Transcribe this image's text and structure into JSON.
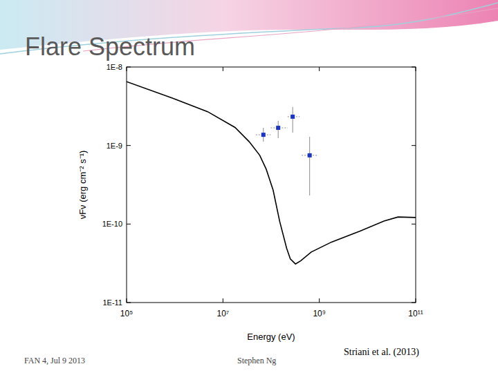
{
  "slide": {
    "title": "Flare Spectrum",
    "footer_left": "FAN 4, Jul 9 2013",
    "footer_center": "Stephen Ng",
    "credit": "Striani et al. (2013)"
  },
  "chart_data": {
    "type": "line",
    "log": true,
    "grid": false,
    "xlabel": "Energy (eV)",
    "ylabel": "νFν (erg cm⁻² s⁻¹)",
    "xlim": [
      100000,
      100000000000
    ],
    "xticks": [
      {
        "value": 100000,
        "label": "10⁵"
      },
      {
        "value": 10000000,
        "label": "10⁷"
      },
      {
        "value": 1000000000,
        "label": "10⁹"
      },
      {
        "value": 100000000000,
        "label": "10¹¹"
      }
    ],
    "ylim": [
      1e-11,
      1e-08
    ],
    "yticks": [
      {
        "value": 1e-11,
        "label": "1E-11"
      },
      {
        "value": 1e-10,
        "label": "1E-10"
      },
      {
        "value": 1e-09,
        "label": "1E-9"
      },
      {
        "value": 1e-08,
        "label": "1E-8"
      }
    ],
    "series": [
      {
        "type": "line",
        "color": "#000000",
        "line_style": "solid",
        "x": [
          100000,
          910000,
          4800000,
          17800000,
          35000000,
          58000000,
          79000000,
          110000000,
          150000000,
          210000000,
          250000000,
          320000000,
          410000000,
          680000000,
          1800000000,
          6900000000,
          22000000000,
          43000000000,
          100000000000
        ],
        "values": [
          6.5e-09,
          4e-09,
          2.7e-09,
          1.7e-09,
          1.12e-09,
          7.5e-10,
          5e-10,
          2.7e-10,
          1.09e-10,
          4.9e-11,
          3.6e-11,
          3.1e-11,
          3.4e-11,
          4.4e-11,
          5.9e-11,
          8.1e-11,
          1.09e-10,
          1.23e-10,
          1.21e-10
        ]
      },
      {
        "type": "scatter",
        "color": "#1c35c4",
        "marker": "square",
        "x": [
          69000000,
          140000000,
          280000000,
          630000000
        ],
        "values": [
          1.37e-09,
          1.68e-09,
          2.33e-09,
          7.5e-10
        ],
        "x_lower": [
          48000000,
          98000000,
          220000000,
          430000000
        ],
        "x_upper": [
          98000000,
          220000000,
          390000000,
          890000000
        ],
        "y_lower": [
          1.12e-09,
          1.24e-09,
          1.46e-09,
          2.31e-10
        ],
        "y_upper": [
          1.68e-09,
          2.06e-09,
          3.1e-09,
          1.29e-09
        ]
      }
    ]
  }
}
